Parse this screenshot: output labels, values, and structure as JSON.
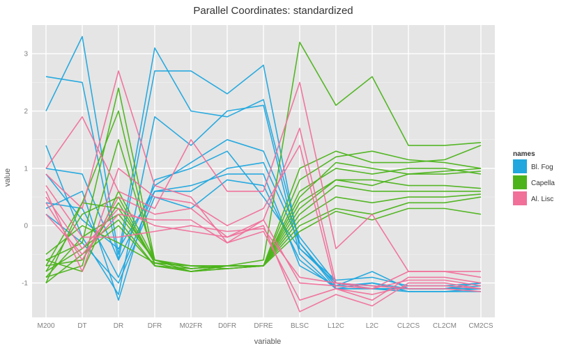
{
  "chart_data": {
    "type": "line",
    "subtype": "parallel-coordinates",
    "title": "Parallel Coordinates: standardized",
    "xlabel": "variable",
    "ylabel": "value",
    "categories": [
      "M200",
      "DT",
      "DR",
      "DFR",
      "M02FR",
      "D0FR",
      "DFRE",
      "BLSC",
      "L12C",
      "L2C",
      "CL2CS",
      "CL2CM",
      "CM2CS"
    ],
    "ylim": [
      -1.6,
      3.5
    ],
    "yticks": [
      -1,
      0,
      1,
      2,
      3
    ],
    "grid": true,
    "legend_title": "names",
    "legend_position": "right",
    "legend": [
      {
        "name": "Bl. Fog",
        "color": "#1FA7DE"
      },
      {
        "name": "Capella",
        "color": "#4CB31B"
      },
      {
        "name": "Al. Lisc",
        "color": "#F0709A"
      }
    ],
    "colors": {
      "panel": "#e5e5e5",
      "grid": "#ffffff"
    },
    "series": [
      {
        "group": 0,
        "values": [
          2.6,
          2.5,
          -0.6,
          2.7,
          2.7,
          2.3,
          2.8,
          -0.4,
          -1.0,
          -1.1,
          -1.1,
          -1.1,
          -1.0
        ]
      },
      {
        "group": 0,
        "values": [
          2.0,
          3.3,
          -0.5,
          3.1,
          2.0,
          1.9,
          2.2,
          -0.3,
          -1.05,
          -0.8,
          -1.1,
          -1.1,
          -1.05
        ]
      },
      {
        "group": 0,
        "values": [
          1.4,
          -0.2,
          -1.2,
          1.9,
          1.4,
          2.0,
          2.1,
          -0.5,
          -1.1,
          -1.0,
          -1.15,
          -1.15,
          -1.1
        ]
      },
      {
        "group": 0,
        "values": [
          1.0,
          0.9,
          -0.6,
          0.7,
          1.1,
          1.5,
          1.3,
          -0.2,
          -1.0,
          -1.05,
          -1.1,
          -1.1,
          -1.0
        ]
      },
      {
        "group": 0,
        "values": [
          0.4,
          0.3,
          -0.9,
          0.6,
          0.6,
          1.0,
          1.1,
          -0.3,
          -1.1,
          -1.1,
          -1.15,
          -1.15,
          -1.15
        ]
      },
      {
        "group": 0,
        "values": [
          0.2,
          -0.3,
          -1.0,
          0.5,
          0.3,
          0.8,
          0.7,
          -0.6,
          -1.1,
          -1.1,
          -1.1,
          -1.1,
          -1.1
        ]
      },
      {
        "group": 0,
        "values": [
          0.3,
          0.6,
          -1.3,
          0.8,
          1.0,
          1.3,
          0.5,
          -0.4,
          -0.95,
          -0.9,
          -1.05,
          -1.05,
          -1.0
        ]
      },
      {
        "group": 0,
        "values": [
          0.9,
          0.1,
          -0.4,
          0.6,
          0.7,
          0.9,
          0.9,
          -0.7,
          -1.05,
          -1.0,
          -1.1,
          -1.1,
          -1.1
        ]
      },
      {
        "group": 1,
        "values": [
          -0.6,
          -0.3,
          2.4,
          -0.6,
          -0.7,
          -0.7,
          -0.6,
          3.2,
          2.1,
          2.6,
          1.4,
          1.4,
          1.45
        ]
      },
      {
        "group": 1,
        "values": [
          -0.7,
          0.4,
          0.3,
          -0.6,
          -0.8,
          -0.7,
          -0.7,
          1.0,
          1.3,
          1.1,
          1.1,
          1.15,
          1.4
        ]
      },
      {
        "group": 1,
        "values": [
          -0.8,
          0.2,
          0.5,
          -0.65,
          -0.7,
          -0.75,
          -0.7,
          0.8,
          1.2,
          1.3,
          1.15,
          1.1,
          1.0
        ]
      },
      {
        "group": 1,
        "values": [
          -0.9,
          -0.2,
          0.2,
          -0.6,
          -0.75,
          -0.7,
          -0.7,
          0.6,
          1.0,
          0.9,
          1.0,
          1.0,
          0.9
        ]
      },
      {
        "group": 1,
        "values": [
          -1.0,
          -0.5,
          0.0,
          -0.7,
          -0.8,
          -0.7,
          -0.7,
          0.4,
          0.8,
          0.7,
          0.9,
          0.95,
          1.0
        ]
      },
      {
        "group": 1,
        "values": [
          -0.5,
          0.0,
          -0.3,
          -0.65,
          -0.8,
          -0.75,
          -0.7,
          0.2,
          0.7,
          0.6,
          0.6,
          0.6,
          0.6
        ]
      },
      {
        "group": 1,
        "values": [
          -0.6,
          -0.8,
          0.6,
          -0.6,
          -0.75,
          -0.7,
          -0.7,
          0.1,
          0.5,
          0.4,
          0.5,
          0.5,
          0.55
        ]
      },
      {
        "group": 1,
        "values": [
          -0.7,
          -0.6,
          0.4,
          -0.65,
          -0.7,
          -0.7,
          -0.7,
          0.0,
          0.3,
          0.2,
          0.4,
          0.4,
          0.5
        ]
      },
      {
        "group": 1,
        "values": [
          -0.8,
          -0.4,
          0.1,
          -0.7,
          -0.8,
          -0.75,
          -0.7,
          -0.1,
          0.25,
          0.1,
          0.3,
          0.3,
          0.2
        ]
      },
      {
        "group": 1,
        "values": [
          -0.9,
          -0.7,
          1.5,
          -0.6,
          -0.75,
          -0.7,
          -0.7,
          0.3,
          0.8,
          0.8,
          0.7,
          0.7,
          0.65
        ]
      },
      {
        "group": 1,
        "values": [
          -1.0,
          0.4,
          2.0,
          -0.7,
          -0.75,
          -0.7,
          -0.7,
          0.5,
          1.1,
          1.0,
          0.9,
          0.9,
          0.95
        ]
      },
      {
        "group": 2,
        "values": [
          1.0,
          1.9,
          0.6,
          0.3,
          1.5,
          0.6,
          0.6,
          2.5,
          -0.4,
          0.2,
          -0.8,
          -0.8,
          -0.8
        ]
      },
      {
        "group": 2,
        "values": [
          0.9,
          0.3,
          2.7,
          0.7,
          0.5,
          -0.3,
          0.1,
          1.7,
          -1.0,
          -1.1,
          -0.8,
          -0.8,
          -0.9
        ]
      },
      {
        "group": 2,
        "values": [
          0.6,
          -0.8,
          1.0,
          0.5,
          0.4,
          0.0,
          0.3,
          1.4,
          -1.1,
          -1.3,
          -0.9,
          -0.9,
          -1.0
        ]
      },
      {
        "group": 2,
        "values": [
          0.4,
          -0.6,
          0.5,
          0.2,
          0.3,
          -0.2,
          0.0,
          -1.5,
          -1.2,
          -1.4,
          -1.0,
          -1.0,
          -1.1
        ]
      },
      {
        "group": 2,
        "values": [
          0.2,
          -0.5,
          0.2,
          0.1,
          0.1,
          -0.3,
          -0.1,
          -1.3,
          -1.1,
          -1.2,
          -1.05,
          -1.05,
          -1.1
        ]
      },
      {
        "group": 2,
        "values": [
          0.7,
          -0.2,
          -0.2,
          -0.1,
          0.0,
          -0.1,
          -0.05,
          -0.9,
          -1.0,
          -1.05,
          -1.1,
          -1.1,
          -1.15
        ]
      },
      {
        "group": 2,
        "values": [
          0.5,
          -0.4,
          0.3,
          0.0,
          -0.1,
          -0.2,
          0.1,
          -1.0,
          -1.05,
          -1.1,
          -0.95,
          -0.95,
          -1.05
        ]
      }
    ]
  }
}
